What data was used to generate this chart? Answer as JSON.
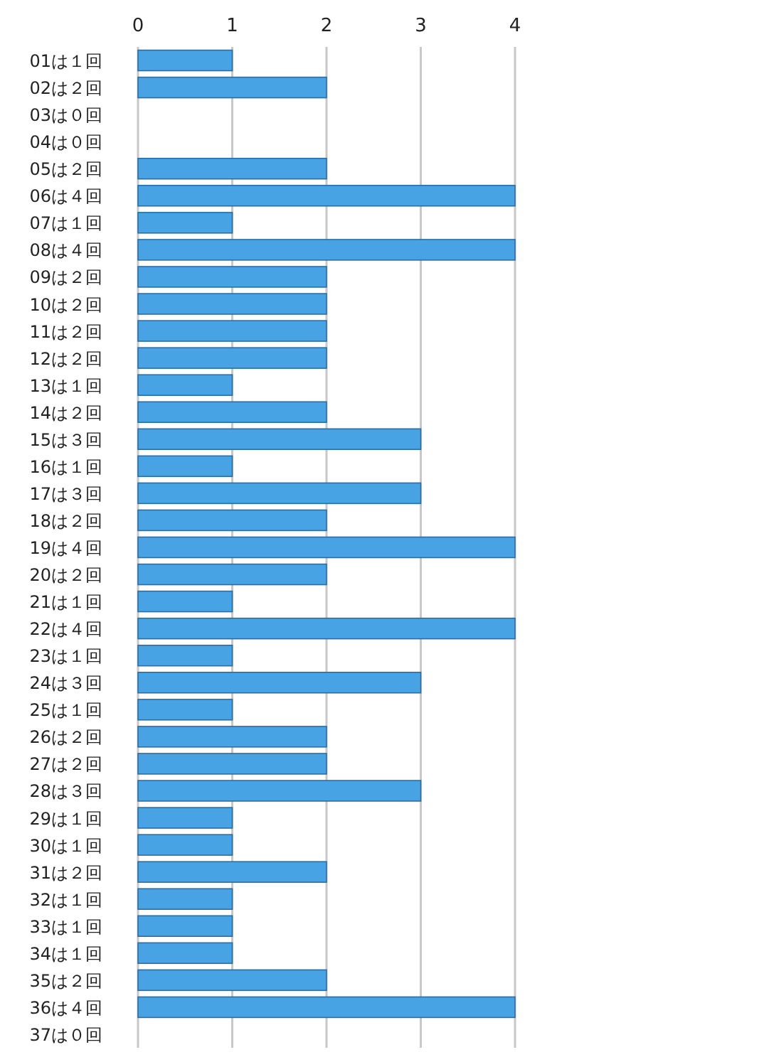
{
  "chart_data": {
    "type": "bar",
    "orientation": "horizontal",
    "categories": [
      "01は１回",
      "02は２回",
      "03は０回",
      "04は０回",
      "05は２回",
      "06は４回",
      "07は１回",
      "08は４回",
      "09は２回",
      "10は２回",
      "11は２回",
      "12は２回",
      "13は１回",
      "14は２回",
      "15は３回",
      "16は１回",
      "17は３回",
      "18は２回",
      "19は４回",
      "20は２回",
      "21は１回",
      "22は４回",
      "23は１回",
      "24は３回",
      "25は１回",
      "26は２回",
      "27は２回",
      "28は３回",
      "29は１回",
      "30は１回",
      "31は２回",
      "32は１回",
      "33は１回",
      "34は１回",
      "35は２回",
      "36は４回",
      "37は０回"
    ],
    "values": [
      1,
      2,
      0,
      0,
      2,
      4,
      1,
      4,
      2,
      2,
      2,
      2,
      1,
      2,
      3,
      1,
      3,
      2,
      4,
      2,
      1,
      4,
      1,
      3,
      1,
      2,
      2,
      3,
      1,
      1,
      2,
      1,
      1,
      1,
      2,
      4,
      0
    ],
    "color": "#47a3e4",
    "xlim": [
      0,
      4
    ],
    "xticks": [
      0,
      1,
      2,
      3,
      4
    ],
    "grid": "x"
  }
}
